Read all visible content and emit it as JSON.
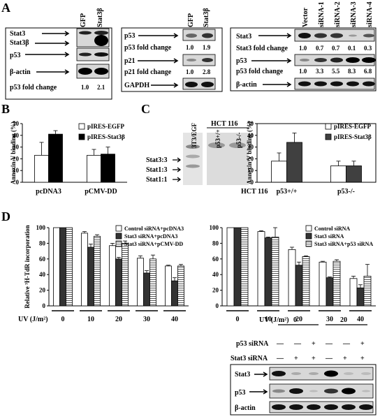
{
  "panel_letters": [
    "A",
    "B",
    "C",
    "D"
  ],
  "panelA": {
    "left": {
      "columns": [
        "GFP",
        "Stat3β"
      ],
      "rows": [
        "Stat3",
        "Stat3β",
        "p53",
        "β-actin"
      ],
      "fold_label": "p53 fold change",
      "fold_values": [
        "1.0",
        "2.1"
      ]
    },
    "middle": {
      "columns": [
        "GFP",
        "Stat3β"
      ],
      "row_p53": "p53",
      "p53_fold_label": "p53 fold change",
      "p53_fold_values": [
        "1.0",
        "1.9"
      ],
      "row_p21": "p21",
      "p21_fold_label": "p21 fold change",
      "p21_fold_values": [
        "1.0",
        "2.8"
      ],
      "row_gapdh": "GAPDH"
    },
    "right": {
      "columns": [
        "Vector",
        "siRNA-1",
        "siRNA-2",
        "siRNA-3",
        "siRNA-4"
      ],
      "row_stat3": "Stat3",
      "stat3_fold_label": "Stat3 fold change",
      "stat3_fold_values": [
        "1.0",
        "0.7",
        "0.7",
        "0.1",
        "0.3"
      ],
      "row_p53": "p53",
      "p53_fold_label": "p53 fold change",
      "p53_fold_values": [
        "1.0",
        "3.3",
        "5.5",
        "8.3",
        "6.8"
      ],
      "row_actin": "β-actin"
    }
  },
  "panelC_gel": {
    "lanes": [
      "3T3/EGF",
      "p53+/+",
      "p53-/-"
    ],
    "group_label": "HCT 116",
    "bands": [
      "Stat3:3",
      "Stat1:3",
      "Stat1:1"
    ]
  },
  "panelD_blot": {
    "uv_label": "UV (J/m²)",
    "uv_groups": [
      "0",
      "20"
    ],
    "p53_sirna_label": "p53 siRNA",
    "p53_sirna_signs": [
      "—",
      "—",
      "+",
      "—",
      "—",
      "+"
    ],
    "stat3_sirna_label": "Stat3 siRNA",
    "stat3_sirna_signs": [
      "—",
      "+",
      "+",
      "—",
      "+",
      "+"
    ],
    "rows": [
      "Stat3",
      "p53",
      "β-actin"
    ]
  },
  "chart_data": [
    {
      "type": "bar",
      "ylabel": "Annexin V binding (%)",
      "ylim": [
        0,
        50
      ],
      "yticks": [
        0,
        10,
        20,
        30,
        40,
        50
      ],
      "categories": [
        "pcDNA3",
        "pCMV-DD"
      ],
      "series": [
        {
          "name": "pIRES-EGFP",
          "values": [
            23,
            23
          ],
          "errors": [
            11,
            5
          ],
          "color": "#ffffff"
        },
        {
          "name": "pIRES-Stat3β",
          "values": [
            41,
            24
          ],
          "errors": [
            3,
            6
          ],
          "color": "#000000"
        }
      ],
      "legend": "top-right"
    },
    {
      "type": "bar",
      "ylabel": "Annexin V binding (%)",
      "ylim": [
        0,
        50
      ],
      "yticks": [
        0,
        10,
        20,
        30,
        40,
        50
      ],
      "xgroup_label": "HCT 116",
      "categories": [
        "p53+/+",
        "p53-/-"
      ],
      "series": [
        {
          "name": "pIRES-EGFP",
          "values": [
            18,
            14
          ],
          "errors": [
            7,
            4
          ],
          "color": "#ffffff"
        },
        {
          "name": "pIRES-Stat3β",
          "values": [
            34,
            14
          ],
          "errors": [
            8,
            4
          ],
          "color": "#404040"
        }
      ],
      "legend": "top-right"
    },
    {
      "type": "bar",
      "ylabel": "Relative ³H-TdR incorporation",
      "ylim": [
        0,
        100
      ],
      "yticks": [
        0,
        20,
        40,
        60,
        80,
        100
      ],
      "xlabel": "UV (J/m²)",
      "categories": [
        "0",
        "10",
        "20",
        "30",
        "40"
      ],
      "series": [
        {
          "name": "Control siRNA+pcDNA3",
          "values": [
            100,
            93,
            77,
            61,
            51
          ],
          "errors": [
            0,
            2,
            3,
            3,
            1
          ],
          "color": "#ffffff"
        },
        {
          "name": "Stat3 siRNA+pcDNA3",
          "values": [
            100,
            75,
            60,
            42,
            32
          ],
          "errors": [
            0,
            4,
            2,
            3,
            4
          ],
          "color": "#333333"
        },
        {
          "name": "Stat3 siRNA+pCMV-DD",
          "values": [
            100,
            89,
            80,
            60,
            51
          ],
          "errors": [
            0,
            2,
            3,
            5,
            2
          ],
          "color": "#cccccc"
        }
      ],
      "legend": "top-right"
    },
    {
      "type": "bar",
      "ylim": [
        0,
        100
      ],
      "yticks": [
        0,
        20,
        40,
        60,
        80,
        100
      ],
      "categories": [
        "0",
        "10",
        "20",
        "30",
        "40"
      ],
      "series": [
        {
          "name": "Control siRNA",
          "values": [
            100,
            95,
            72,
            56,
            35
          ],
          "errors": [
            0,
            1,
            3,
            1,
            3
          ],
          "color": "#ffffff"
        },
        {
          "name": "Stat3 siRNA",
          "values": [
            100,
            87,
            52,
            36,
            23
          ],
          "errors": [
            0,
            1,
            4,
            1,
            4
          ],
          "color": "#333333"
        },
        {
          "name": "Stat3 siRNA+p53 siRNA",
          "values": [
            100,
            88,
            63,
            57,
            38
          ],
          "errors": [
            0,
            12,
            1,
            2,
            15
          ],
          "color": "#cccccc"
        }
      ],
      "legend": "top-right"
    }
  ]
}
